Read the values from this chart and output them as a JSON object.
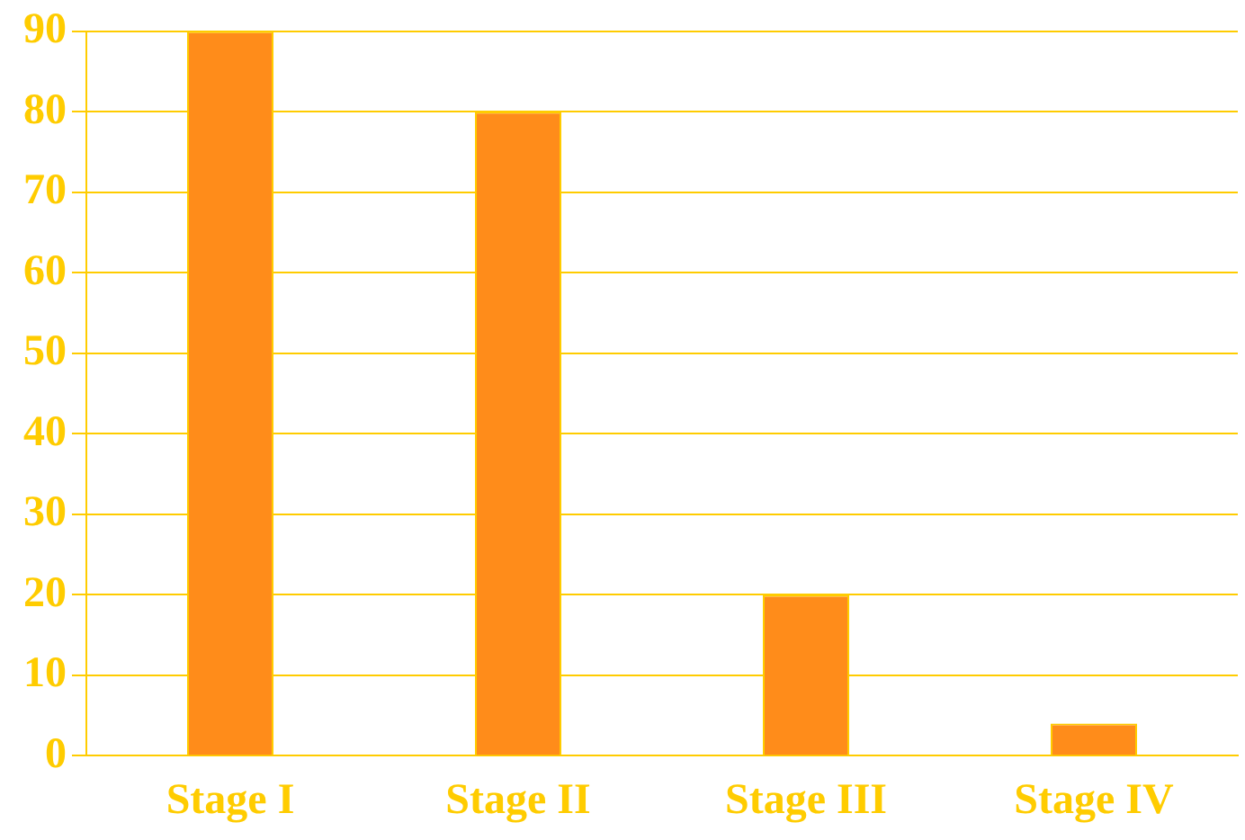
{
  "chart_data": {
    "type": "bar",
    "categories": [
      "Stage I",
      "Stage II",
      "Stage III",
      "Stage IV"
    ],
    "values": [
      90,
      80,
      20,
      4
    ],
    "color": "#ff8c1a",
    "ylim": [
      0,
      90
    ],
    "yticks": [
      0,
      10,
      20,
      30,
      40,
      50,
      60,
      70,
      80,
      90
    ],
    "grid": "y"
  }
}
